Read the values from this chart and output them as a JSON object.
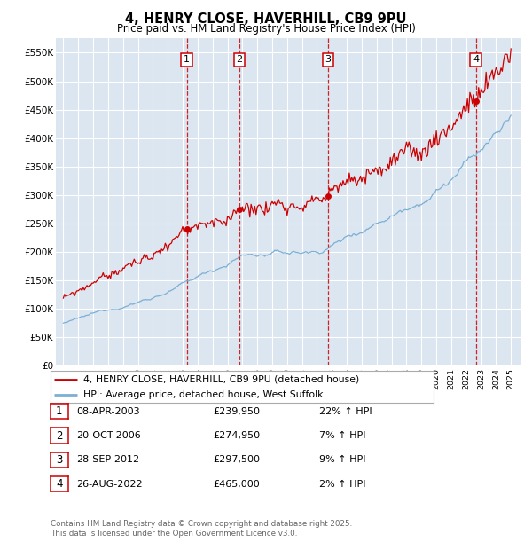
{
  "title": "4, HENRY CLOSE, HAVERHILL, CB9 9PU",
  "subtitle": "Price paid vs. HM Land Registry's House Price Index (HPI)",
  "ylim": [
    0,
    575000
  ],
  "yticks": [
    0,
    50000,
    100000,
    150000,
    200000,
    250000,
    300000,
    350000,
    400000,
    450000,
    500000,
    550000
  ],
  "background_color": "#dce6f1",
  "grid_color": "#ffffff",
  "legend_label_red": "4, HENRY CLOSE, HAVERHILL, CB9 9PU (detached house)",
  "legend_label_blue": "HPI: Average price, detached house, West Suffolk",
  "sale_year_floats": [
    2003.27,
    2006.8,
    2012.74,
    2022.65
  ],
  "sale_prices": [
    239950,
    274950,
    297500,
    465000
  ],
  "sale_labels": [
    "1",
    "2",
    "3",
    "4"
  ],
  "table_rows": [
    [
      "1",
      "08-APR-2003",
      "£239,950",
      "22% ↑ HPI"
    ],
    [
      "2",
      "20-OCT-2006",
      "£274,950",
      "7% ↑ HPI"
    ],
    [
      "3",
      "28-SEP-2012",
      "£297,500",
      "9% ↑ HPI"
    ],
    [
      "4",
      "26-AUG-2022",
      "£465,000",
      "2% ↑ HPI"
    ]
  ],
  "footer": "Contains HM Land Registry data © Crown copyright and database right 2025.\nThis data is licensed under the Open Government Licence v3.0.",
  "red_color": "#cc0000",
  "blue_color": "#7bafd4",
  "vline_color": "#cc0000"
}
